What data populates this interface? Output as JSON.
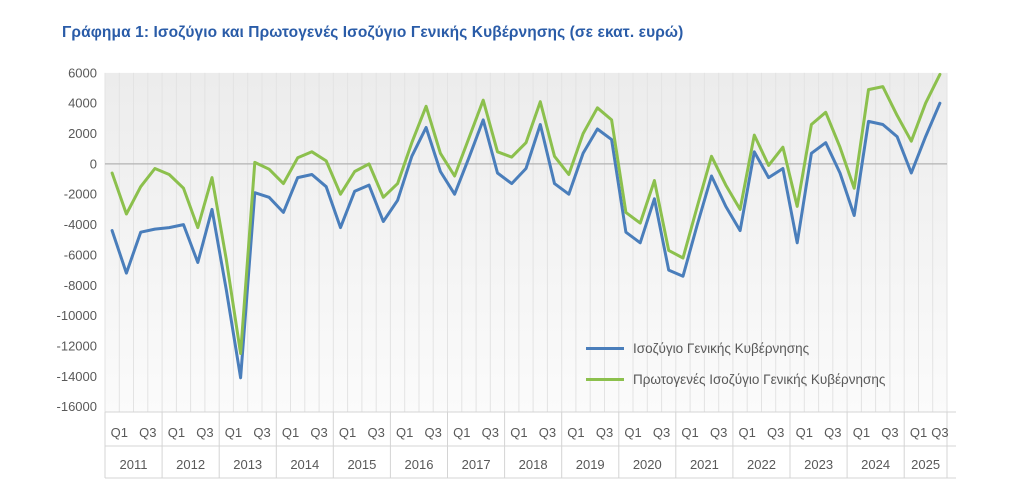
{
  "title": "Γράφημα 1: Ισοζύγιο και Πρωτογενές Ισοζύγιο Γενικής Κυβέρνησης (σε εκατ. ευρώ)",
  "legend": {
    "items": [
      {
        "label": "Ισοζύγιο Γενικής Κυβέρνησης",
        "color": "#4a7ebb"
      },
      {
        "label": "Πρωτογενές Ισοζύγιο Γενικής Κυβέρνησης",
        "color": "#8cc04d"
      }
    ]
  },
  "colors": {
    "title_blue": "#2a5ca8",
    "axis_text": "#595959",
    "zero_line": "#b3b3b3",
    "grid_line": "#e3e3e3",
    "axis_frame": "#d4d4d4",
    "plot_fill_top": "#ececec",
    "plot_fill_bottom": "#fbfbfb"
  },
  "chart_data": {
    "type": "line",
    "title": "Γράφημα 1: Ισοζύγιο και Πρωτογενές Ισοζύγιο Γενικής Κυβέρνησης (σε εκατ. ευρώ)",
    "unit": "εκατ. ευρώ",
    "x": {
      "years": [
        2011,
        2012,
        2013,
        2014,
        2015,
        2016,
        2017,
        2018,
        2019,
        2020,
        2021,
        2022,
        2023,
        2024,
        2025
      ],
      "quarters_per_year": 4,
      "last_year_quarters": 3,
      "tick_labels": [
        "Q1",
        "Q3"
      ]
    },
    "y_ticks": [
      6000,
      4000,
      2000,
      0,
      -2000,
      -4000,
      -6000,
      -8000,
      -10000,
      -12000,
      -14000,
      -16000
    ],
    "ylim": [
      -16000,
      6000
    ],
    "grid": {
      "vertical_quarter_lines": true,
      "horizontal_lines": false,
      "zero_axis_line": true
    },
    "legend_position": "inside-right",
    "series": [
      {
        "name": "Ισοζύγιο Γενικής Κυβέρνησης",
        "color": "#4a7ebb",
        "values": [
          -4400,
          -7200,
          -4500,
          -4300,
          -4200,
          -4000,
          -6500,
          -3000,
          -8300,
          -14100,
          -1900,
          -2200,
          -3200,
          -900,
          -700,
          -1500,
          -4200,
          -1800,
          -1400,
          -3800,
          -2400,
          500,
          2400,
          -500,
          -2000,
          400,
          2900,
          -600,
          -1300,
          -300,
          2600,
          -1300,
          -2000,
          700,
          2300,
          1600,
          -4500,
          -5200,
          -2300,
          -7000,
          -7400,
          -4000,
          -800,
          -2800,
          -4400,
          800,
          -900,
          -300,
          -5200,
          700,
          1400,
          -600,
          -3400,
          2800,
          2600,
          1800,
          -600,
          1800,
          4000
        ]
      },
      {
        "name": "Πρωτογενές Ισοζύγιο Γενικής Κυβέρνησης",
        "color": "#8cc04d",
        "values": [
          -600,
          -3300,
          -1500,
          -300,
          -700,
          -1600,
          -4200,
          -900,
          -6300,
          -12500,
          100,
          -350,
          -1300,
          400,
          800,
          200,
          -2000,
          -500,
          0,
          -2200,
          -1300,
          1400,
          3800,
          700,
          -800,
          1700,
          4200,
          800,
          450,
          1400,
          4100,
          500,
          -700,
          2000,
          3700,
          2900,
          -3200,
          -3900,
          -1100,
          -5700,
          -6200,
          -2800,
          500,
          -1400,
          -3000,
          1900,
          -100,
          1100,
          -2800,
          2600,
          3400,
          1100,
          -1600,
          4900,
          5100,
          3200,
          1500,
          4000,
          5900
        ]
      }
    ]
  }
}
